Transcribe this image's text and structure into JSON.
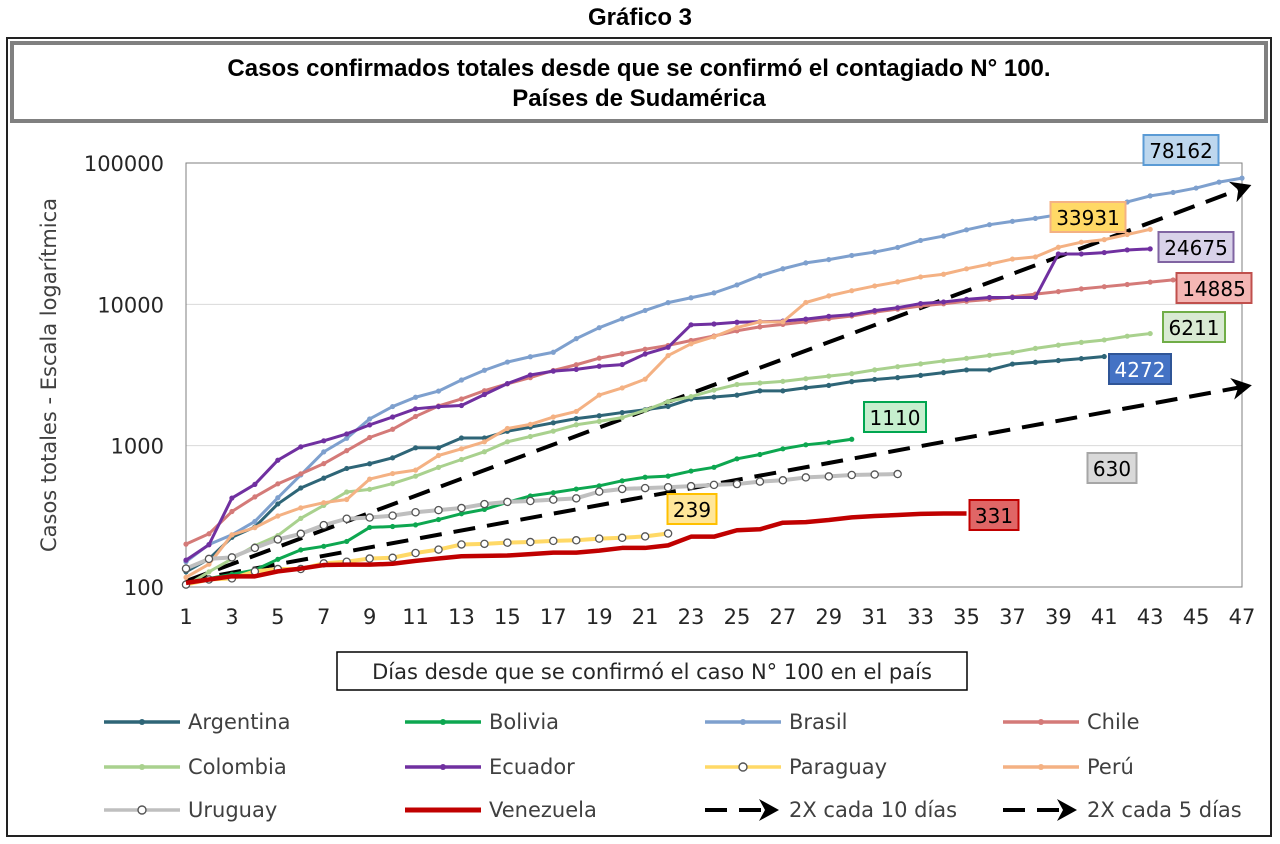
{
  "super_title": "Gráfico 3",
  "chart_data": {
    "type": "line",
    "title": "Casos confirmados totales desde que se confirmó el contagiado N° 100.",
    "subtitle": "Países de Sudamérica",
    "xlabel": "Días desde que se confirmó el caso N° 100 en el país",
    "ylabel": "Casos totales - Escala logarítmica",
    "yscale": "log",
    "ylim": [
      100,
      100000
    ],
    "xlim": [
      1,
      47
    ],
    "x_ticks": [
      "1",
      "3",
      "5",
      "7",
      "9",
      "11",
      "13",
      "15",
      "17",
      "19",
      "21",
      "23",
      "25",
      "27",
      "29",
      "31",
      "33",
      "35",
      "37",
      "39",
      "41",
      "43",
      "45",
      "47"
    ],
    "y_ticks": [
      "100",
      "1000",
      "10000",
      "100000"
    ],
    "grid": "horizontal",
    "legend_position": "bottom",
    "series": [
      {
        "name": "Argentina",
        "color": "#2E6577",
        "marker": "dot",
        "start": 1,
        "values": [
          128,
          158,
          225,
          266,
          387,
          502,
          589,
          690,
          745,
          820,
          966,
          966,
          1133,
          1133,
          1265,
          1353,
          1451,
          1554,
          1628,
          1715,
          1795,
          1894,
          2142,
          2208,
          2277,
          2443,
          2443,
          2571,
          2669,
          2839,
          2941,
          3031,
          3144,
          3288,
          3435,
          3435,
          3780,
          3892,
          4003,
          4127,
          4272
        ],
        "end_label": "4272",
        "label_fill": "#4472C4",
        "label_border": "#2F5597",
        "label_text": "#ffffff"
      },
      {
        "name": "Bolivia",
        "color": "#0DA750",
        "marker": "dot",
        "start": 1,
        "values": [
          107,
          115,
          123,
          132,
          157,
          183,
          194,
          210,
          264,
          268,
          275,
          300,
          330,
          354,
          397,
          441,
          465,
          493,
          520,
          564,
          598,
          609,
          661,
          703,
          807,
          866,
          950,
          1014,
          1053,
          1110
        ],
        "end_label": "1110",
        "label_fill": "#C6EFCE",
        "label_border": "#00A650",
        "label_text": "#000000"
      },
      {
        "name": "Brasil",
        "color": "#7EA0CE",
        "marker": "dot",
        "start": 1,
        "values": [
          151,
          200,
          234,
          291,
          428,
          621,
          904,
          1128,
          1546,
          1891,
          2201,
          2433,
          2915,
          3417,
          3904,
          4256,
          4579,
          5717,
          6836,
          7910,
          9056,
          10278,
          11130,
          12056,
          13717,
          15927,
          17857,
          19638,
          20727,
          22169,
          23430,
          25262,
          28320,
          30425,
          33682,
          36599,
          38654,
          40581,
          43079,
          45757,
          49492,
          52995,
          58509,
          61888,
          66501,
          73235,
          78162
        ],
        "end_label": "78162",
        "label_fill": "#BDD7EE",
        "label_border": "#5B9BD5",
        "label_text": "#000000"
      },
      {
        "name": "Chile",
        "color": "#D47A78",
        "marker": "dot",
        "start": 1,
        "values": [
          201,
          238,
          342,
          434,
          537,
          632,
          746,
          922,
          1142,
          1306,
          1610,
          1909,
          2139,
          2449,
          2738,
          3031,
          3404,
          3737,
          4161,
          4471,
          4815,
          5116,
          5546,
          5972,
          6501,
          6927,
          7213,
          7525,
          7917,
          8273,
          8807,
          9252,
          9730,
          10088,
          10507,
          10832,
          11296,
          11812,
          12306,
          12858,
          13331,
          13813,
          14365,
          14885
        ],
        "end_label": "14885",
        "label_fill": "#F4B6B4",
        "label_border": "#C0504D",
        "label_text": "#000000"
      },
      {
        "name": "Colombia",
        "color": "#A9D18E",
        "marker": "dot",
        "start": 1,
        "values": [
          102,
          128,
          158,
          196,
          231,
          306,
          378,
          470,
          491,
          539,
          608,
          702,
          798,
          906,
          1065,
          1161,
          1267,
          1406,
          1485,
          1579,
          1780,
          2054,
          2223,
          2473,
          2709,
          2776,
          2852,
          2979,
          3105,
          3233,
          3439,
          3621,
          3792,
          3977,
          4149,
          4356,
          4561,
          4881,
          5142,
          5379,
          5597,
          5949,
          6211
        ],
        "end_label": "6211",
        "label_fill": "#D9EAD3",
        "label_border": "#70AD47",
        "label_text": "#000000"
      },
      {
        "name": "Ecuador",
        "color": "#7030A0",
        "marker": "dot",
        "start": 1,
        "values": [
          155,
          199,
          426,
          532,
          789,
          981,
          1082,
          1211,
          1403,
          1595,
          1823,
          1890,
          1924,
          2302,
          2748,
          3163,
          3368,
          3465,
          3646,
          3747,
          4450,
          4965,
          7161,
          7257,
          7466,
          7529,
          7603,
          7858,
          8225,
          8450,
          9022,
          9468,
          10128,
          10398,
          10850,
          11183,
          11183,
          11183,
          22719,
          22719,
          23240,
          24258,
          24675
        ],
        "end_label": "24675",
        "label_fill": "#D9D2E9",
        "label_border": "#8064A2",
        "label_text": "#000000"
      },
      {
        "name": "Paraguay",
        "color": "#FFD966",
        "marker": "ring",
        "start": 1,
        "values": [
          104,
          113,
          115,
          129,
          134,
          134,
          147,
          151,
          159,
          161,
          174,
          184,
          200,
          202,
          206,
          208,
          212,
          214,
          220,
          223,
          228,
          239,
          null
        ],
        "end_label": "239",
        "label_fill": "#FFE699",
        "label_border": "#FFC000",
        "label_text": "#000000"
      },
      {
        "name": "Perú",
        "color": "#F4B183",
        "marker": "dot",
        "start": 1,
        "values": [
          117,
          145,
          234,
          263,
          318,
          363,
          395,
          416,
          580,
          635,
          671,
          852,
          950,
          1065,
          1323,
          1414,
          1595,
          1746,
          2281,
          2561,
          2954,
          4342,
          5256,
          5897,
          6848,
          7519,
          7519,
          10303,
          11475,
          12491,
          13489,
          14420,
          15628,
          16325,
          17837,
          19250,
          20914,
          21648,
          25331,
          27517,
          28699,
          31190,
          33931
        ],
        "end_label": "33931",
        "label_fill": "#FFD966",
        "label_border": "#F4B183",
        "label_text": "#000000"
      },
      {
        "name": "Uruguay",
        "color": "#BFBFBF",
        "marker": "ring",
        "start": 1,
        "values": [
          135,
          158,
          162,
          189,
          217,
          238,
          274,
          304,
          310,
          320,
          338,
          350,
          362,
          386,
          400,
          406,
          415,
          424,
          473,
          494,
          501,
          508,
          517,
          528,
          535,
          557,
          569,
          596,
          606,
          620,
          625,
          630
        ],
        "x_start": 9,
        "end_label": "630",
        "label_fill": "#D9D9D9",
        "label_border": "#A6A6A6",
        "label_text": "#000000"
      },
      {
        "name": "Venezuela",
        "color": "#C00000",
        "marker": "none",
        "start": 1,
        "values": [
          107,
          113,
          119,
          119,
          129,
          135,
          143,
          144,
          144,
          146,
          153,
          159,
          165,
          166,
          167,
          171,
          175,
          175,
          181,
          189,
          189,
          197,
          227,
          227,
          252,
          256,
          285,
          288,
          298,
          311,
          318,
          323,
          329,
          331,
          331
        ],
        "end_label": "331",
        "label_fill": "#E06666",
        "label_border": "#C00000",
        "label_text": "#000000"
      }
    ],
    "reference_lines": [
      {
        "name": "2X cada 10 días",
        "color": "#000000",
        "from": [
          1,
          110
        ],
        "to": [
          47,
          2600
        ]
      },
      {
        "name": "2X cada 5 días",
        "color": "#000000",
        "from": [
          1,
          110
        ],
        "to": [
          47,
          66000
        ]
      }
    ]
  }
}
